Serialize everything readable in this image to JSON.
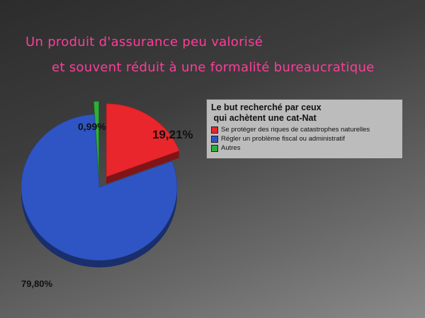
{
  "slide": {
    "title_line1": "Un produit d'assurance peu valorisé",
    "title_line2": "et souvent réduit à une formalité bureaucratique",
    "title_color": "#ff3d9a"
  },
  "chart_data": {
    "type": "pie",
    "title": "Le but recherché par ceux\n qui achètent une cat-Nat",
    "legend_position": "right",
    "slices": [
      {
        "label": "Se protéger des riques de catastrophes naturelles",
        "value": 19.21,
        "display": "19,21%",
        "color": "#e8262b",
        "exploded": true
      },
      {
        "label": "Régler un problème fiscal ou administratif",
        "value": 79.8,
        "display": "79,80%",
        "color": "#2f55c4",
        "exploded": false
      },
      {
        "label": "Autres",
        "value": 0.99,
        "display": "0,99%",
        "color": "#2fae3a",
        "exploded": true
      }
    ]
  }
}
